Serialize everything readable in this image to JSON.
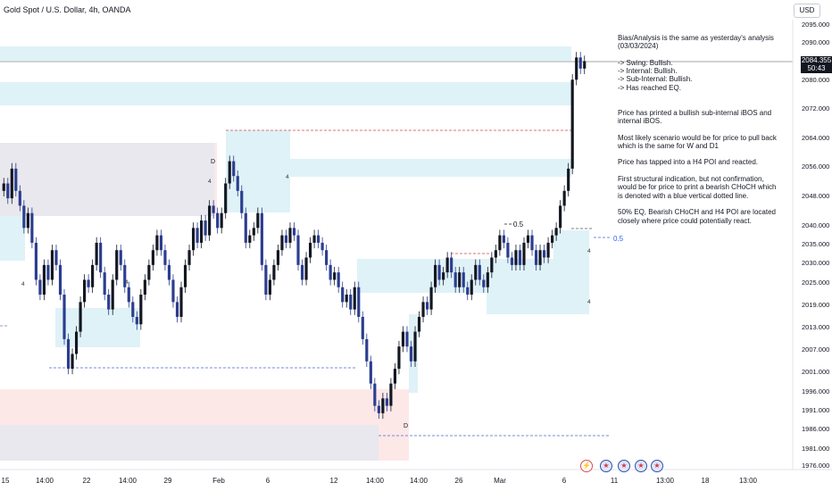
{
  "header": {
    "title": "Gold Spot / U.S. Dollar, 4h, OANDA",
    "currency": "USD"
  },
  "price_badge": {
    "price": "2084.355",
    "countdown": "50:43"
  },
  "analysis": {
    "text": "Bias/Analysis is the same as yesterday's analysis\n(03/03/2024)\n\n-> Swing:  Bullish.\n-> Internal:  Bullish.\n-> Sub-Internal:  Bullish.\n-> Has reached EQ.\n\n\nPrice has printed a bullish sub-internal iBOS and\ninternal iBOS.\n\nMost likely scenario would be for price to pull back\nwhich is the same for W and D1\n\nPrice has tapped into a H4 POI and reacted.\n\nFirst structural indication, but not confirmation,\nwould be for price to print a bearish CHoCH which\nis denoted with a blue vertical dotted line.\n\n50% EQ, Bearish CHoCH and H4 POI are located\nclosely where price could potentially react."
  },
  "labels": {
    "eq_black": "0.5",
    "eq_blue": "0.5",
    "d1": "D",
    "d2": "D",
    "zone": "4"
  },
  "colors": {
    "up": "#131722",
    "down": "#2b3d8f",
    "zone_blue": "#dff2f7",
    "zone_red": "#fde8e8",
    "zone_gray": "#e8e8ee",
    "dash_red": "#d14a4a",
    "dash_blue": "#4a6ad1",
    "dash_gray": "#6b7bb5"
  },
  "event_icons": [
    "lightning-icon",
    "us-flag-icon",
    "us-flag-icon",
    "us-flag-icon",
    "us-flag-icon"
  ],
  "chart_data": {
    "type": "candlestick",
    "symbol": "Gold Spot / U.S. Dollar",
    "timeframe": "4h",
    "y_ticks": [
      "2095.000",
      "2090.000",
      "2080.000",
      "2072.000",
      "2064.000",
      "2056.000",
      "2048.000",
      "2040.000",
      "2035.000",
      "2030.000",
      "2025.000",
      "2019.000",
      "2013.000",
      "2007.000",
      "2001.000",
      "1996.000",
      "1991.000",
      "1986.000",
      "1981.000",
      "1976.000"
    ],
    "x_ticks": [
      "15",
      "14:00",
      "22",
      "14:00",
      "29",
      "Feb",
      "6",
      "12",
      "14:00",
      "14:00",
      "26",
      "Mar",
      "6",
      "11",
      "13:00",
      "18",
      "13:00"
    ],
    "ylim": [
      1976,
      2095
    ],
    "last_price": 2084.355,
    "closes": [
      2052,
      2048,
      2056,
      2050,
      2046,
      2040,
      2044,
      2036,
      2026,
      2022,
      2030,
      2026,
      2034,
      2030,
      2022,
      2010,
      2002,
      2006,
      2012,
      2020,
      2026,
      2024,
      2030,
      2036,
      2028,
      2022,
      2018,
      2026,
      2034,
      2030,
      2024,
      2020,
      2016,
      2014,
      2022,
      2026,
      2030,
      2034,
      2038,
      2034,
      2030,
      2026,
      2020,
      2016,
      2024,
      2030,
      2034,
      2040,
      2036,
      2042,
      2038,
      2046,
      2044,
      2040,
      2044,
      2052,
      2058,
      2054,
      2050,
      2044,
      2036,
      2038,
      2040,
      2044,
      2030,
      2022,
      2026,
      2030,
      2034,
      2038,
      2036,
      2040,
      2038,
      2030,
      2026,
      2032,
      2036,
      2038,
      2036,
      2034,
      2030,
      2026,
      2028,
      2024,
      2020,
      2022,
      2018,
      2024,
      2016,
      2010,
      2004,
      1998,
      1992,
      1990,
      1994,
      1992,
      1998,
      2002,
      2008,
      2012,
      2008,
      2004,
      2012,
      2016,
      2020,
      2018,
      2024,
      2030,
      2026,
      2028,
      2032,
      2028,
      2024,
      2028,
      2024,
      2022,
      2026,
      2030,
      2026,
      2024,
      2028,
      2032,
      2034,
      2038,
      2036,
      2032,
      2030,
      2034,
      2030,
      2036,
      2038,
      2034,
      2030,
      2034,
      2032,
      2036,
      2038,
      2040,
      2046,
      2050,
      2056,
      2080,
      2086,
      2083,
      2085
    ]
  }
}
